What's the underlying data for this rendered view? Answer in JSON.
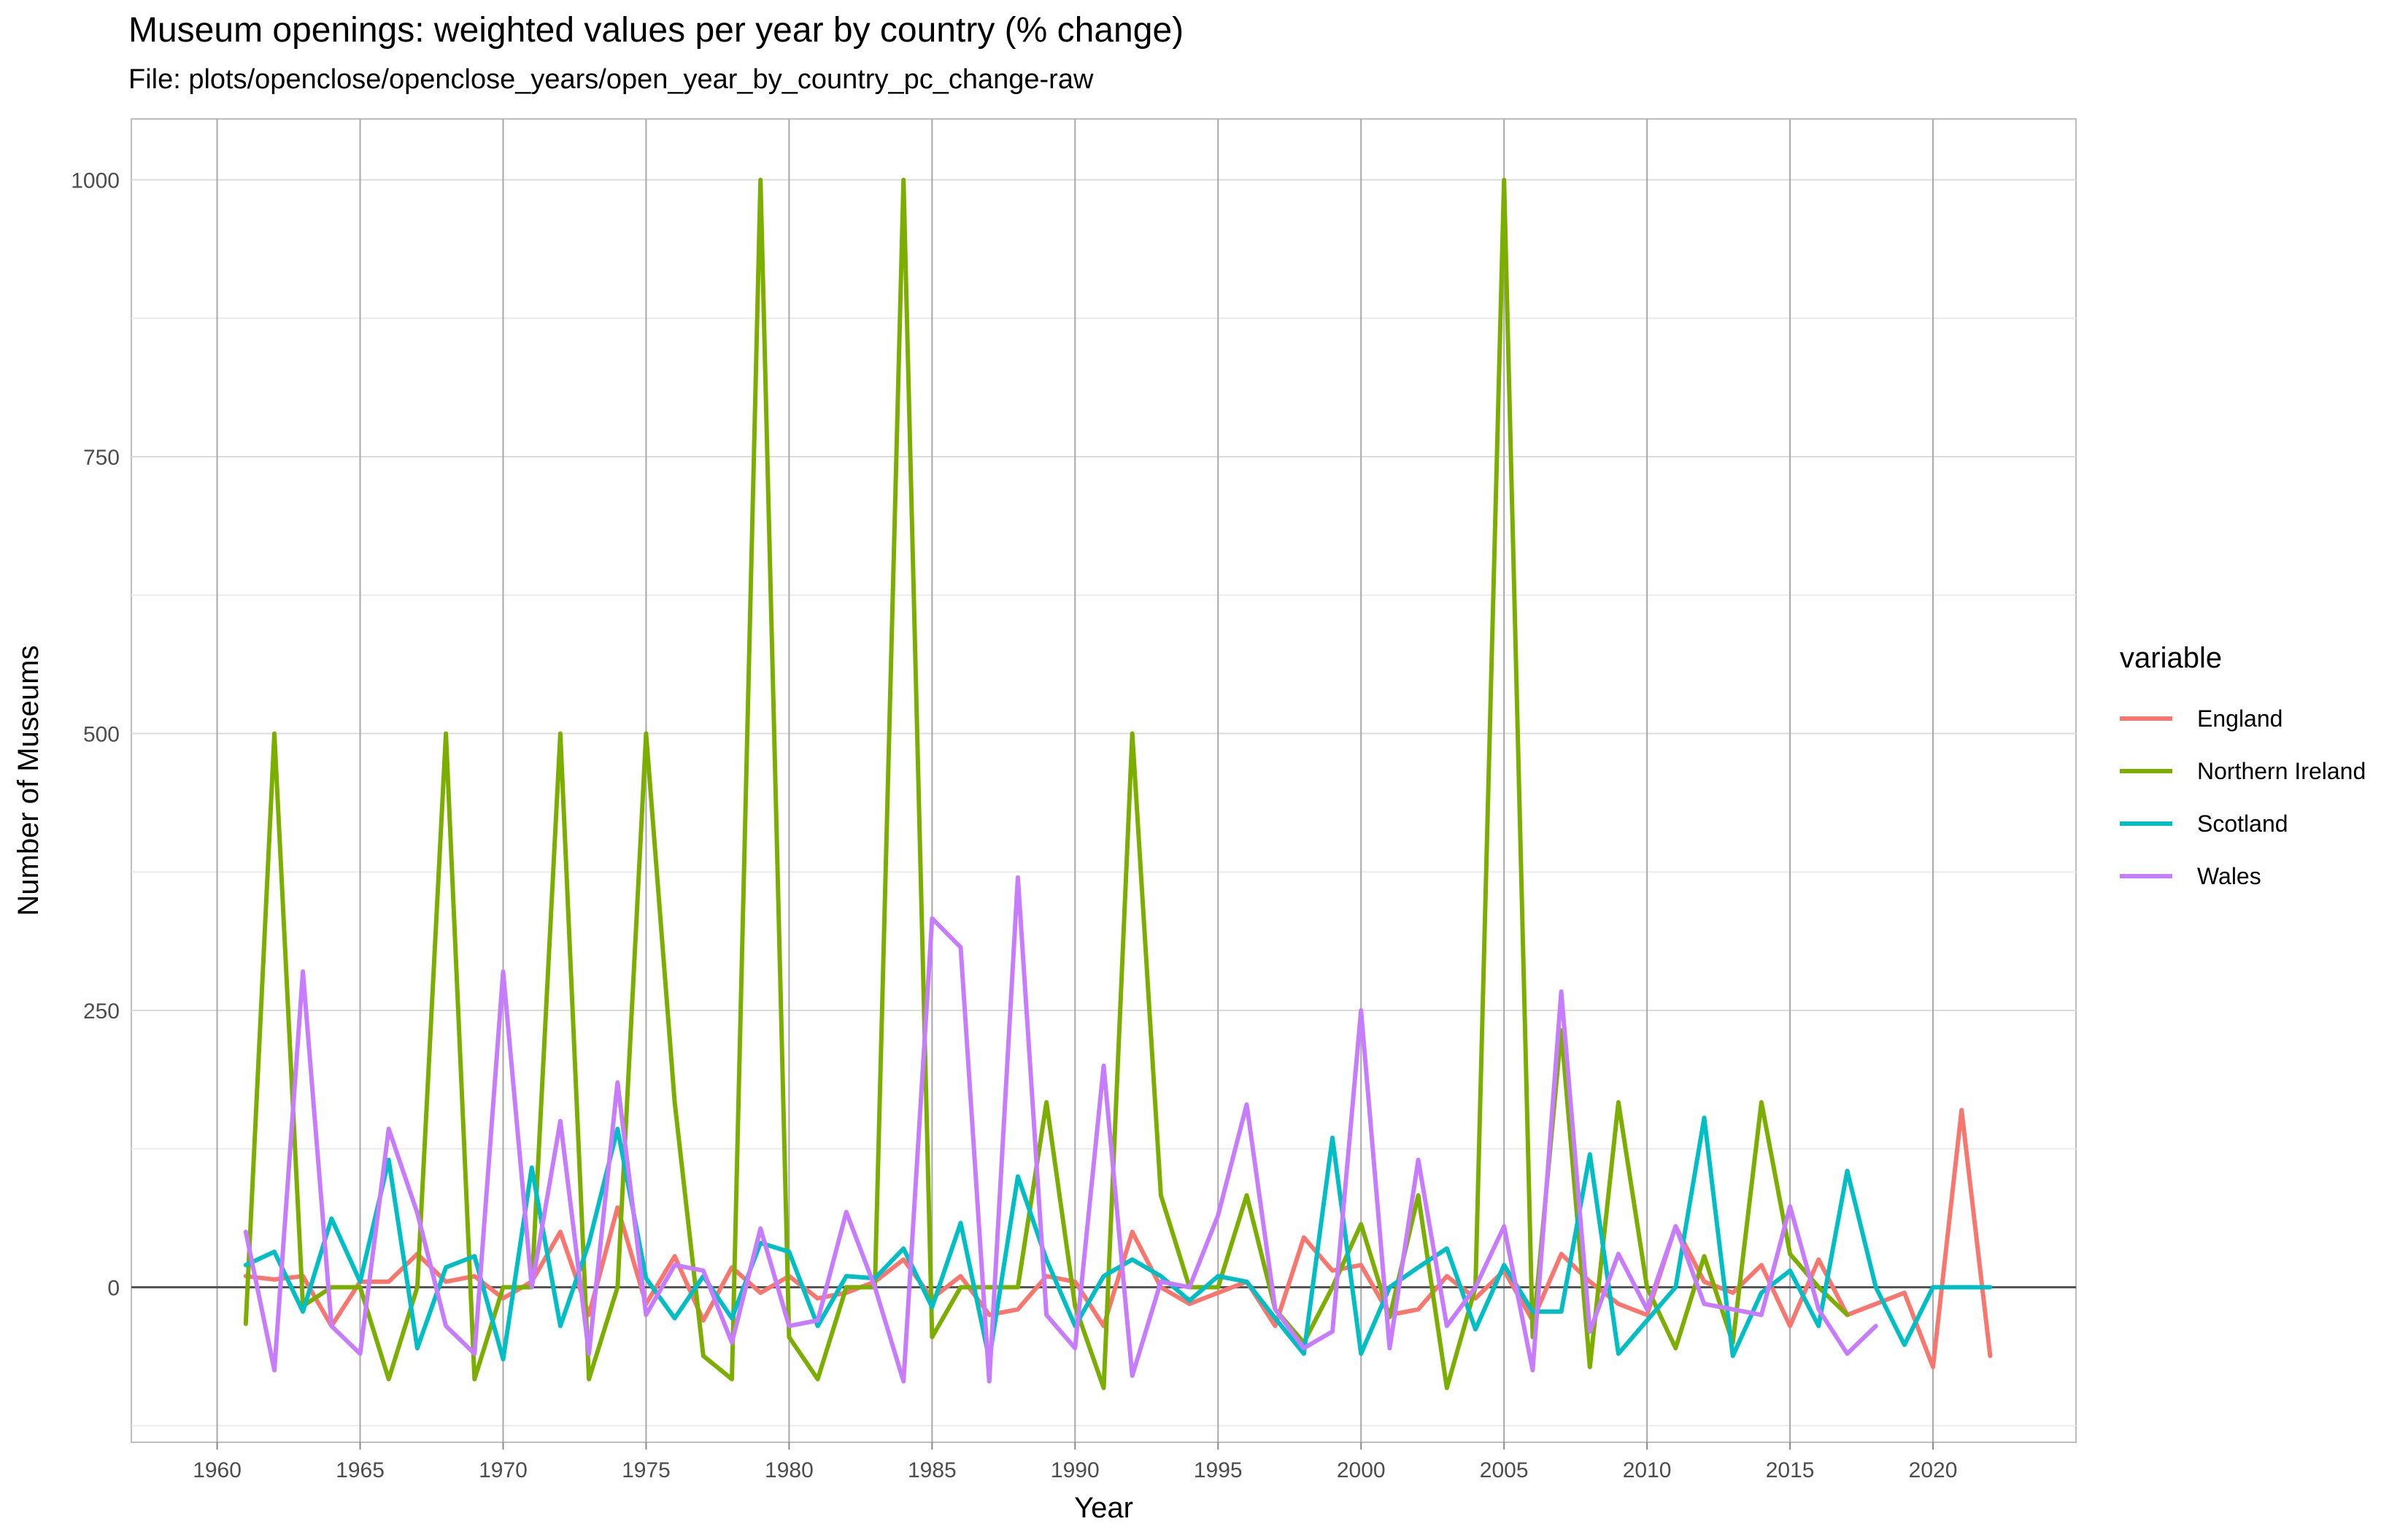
{
  "title": "Museum openings: weighted values per year by country (% change)",
  "subtitle": "File: plots/openclose/openclose_years/open_year_by_country_pc_change-raw",
  "chart_data": {
    "type": "line",
    "xlabel": "Year",
    "ylabel": "Number of Museums",
    "xlim": [
      1957,
      2025
    ],
    "ylim": [
      -140,
      1055
    ],
    "x_ticks": [
      1960,
      1965,
      1970,
      1975,
      1980,
      1985,
      1990,
      1995,
      2000,
      2005,
      2010,
      2015,
      2020
    ],
    "y_ticks": [
      0,
      250,
      500,
      750,
      1000
    ],
    "legend_title": "variable",
    "legend_position": "right",
    "grid": true,
    "series": [
      {
        "name": "England",
        "color": "#F8766D",
        "points": [
          [
            1961,
            10
          ],
          [
            1962,
            7
          ],
          [
            1963,
            10
          ],
          [
            1964,
            -35
          ],
          [
            1965,
            5
          ],
          [
            1966,
            5
          ],
          [
            1967,
            30
          ],
          [
            1968,
            5
          ],
          [
            1969,
            10
          ],
          [
            1970,
            -10
          ],
          [
            1971,
            5
          ],
          [
            1972,
            50
          ],
          [
            1973,
            -25
          ],
          [
            1974,
            72
          ],
          [
            1975,
            -15
          ],
          [
            1976,
            28
          ],
          [
            1977,
            -30
          ],
          [
            1978,
            18
          ],
          [
            1979,
            -5
          ],
          [
            1980,
            10
          ],
          [
            1981,
            -10
          ],
          [
            1982,
            -5
          ],
          [
            1983,
            5
          ],
          [
            1984,
            25
          ],
          [
            1985,
            -10
          ],
          [
            1986,
            10
          ],
          [
            1987,
            -25
          ],
          [
            1988,
            -20
          ],
          [
            1989,
            10
          ],
          [
            1990,
            5
          ],
          [
            1991,
            -35
          ],
          [
            1992,
            50
          ],
          [
            1993,
            0
          ],
          [
            1994,
            -15
          ],
          [
            1995,
            -5
          ],
          [
            1996,
            5
          ],
          [
            1997,
            -35
          ],
          [
            1998,
            45
          ],
          [
            1999,
            15
          ],
          [
            2000,
            20
          ],
          [
            2001,
            -25
          ],
          [
            2002,
            -20
          ],
          [
            2003,
            10
          ],
          [
            2004,
            -10
          ],
          [
            2005,
            15
          ],
          [
            2006,
            -30
          ],
          [
            2007,
            30
          ],
          [
            2008,
            5
          ],
          [
            2009,
            -15
          ],
          [
            2010,
            -25
          ],
          [
            2011,
            55
          ],
          [
            2012,
            5
          ],
          [
            2013,
            -5
          ],
          [
            2014,
            20
          ],
          [
            2015,
            -35
          ],
          [
            2016,
            25
          ],
          [
            2017,
            -25
          ],
          [
            2018,
            -15
          ],
          [
            2019,
            -5
          ],
          [
            2020,
            -72
          ],
          [
            2021,
            160
          ],
          [
            2022,
            -62
          ]
        ]
      },
      {
        "name": "Northern Ireland",
        "color": "#7CAE00",
        "points": [
          [
            1961,
            -33
          ],
          [
            1962,
            500
          ],
          [
            1963,
            -17
          ],
          [
            1964,
            0
          ],
          [
            1965,
            0
          ],
          [
            1966,
            -83
          ],
          [
            1967,
            0
          ],
          [
            1968,
            500
          ],
          [
            1969,
            -83
          ],
          [
            1970,
            0
          ],
          [
            1971,
            0
          ],
          [
            1972,
            500
          ],
          [
            1973,
            -83
          ],
          [
            1974,
            0
          ],
          [
            1975,
            500
          ],
          [
            1976,
            167
          ],
          [
            1977,
            -62
          ],
          [
            1978,
            -83
          ],
          [
            1979,
            1000
          ],
          [
            1980,
            -45
          ],
          [
            1981,
            -83
          ],
          [
            1982,
            0
          ],
          [
            1983,
            0
          ],
          [
            1984,
            1000
          ],
          [
            1985,
            -45
          ],
          [
            1986,
            0
          ],
          [
            1987,
            0
          ],
          [
            1988,
            0
          ],
          [
            1989,
            167
          ],
          [
            1990,
            -17
          ],
          [
            1991,
            -91
          ],
          [
            1992,
            500
          ],
          [
            1993,
            83
          ],
          [
            1994,
            0
          ],
          [
            1995,
            0
          ],
          [
            1996,
            83
          ],
          [
            1997,
            -20
          ],
          [
            1998,
            -50
          ],
          [
            1999,
            0
          ],
          [
            2000,
            57
          ],
          [
            2001,
            -27
          ],
          [
            2002,
            83
          ],
          [
            2003,
            -91
          ],
          [
            2004,
            0
          ],
          [
            2005,
            1000
          ],
          [
            2006,
            -45
          ],
          [
            2007,
            232
          ],
          [
            2008,
            -72
          ],
          [
            2009,
            167
          ],
          [
            2010,
            0
          ],
          [
            2011,
            -55
          ],
          [
            2012,
            28
          ],
          [
            2013,
            -50
          ],
          [
            2014,
            167
          ],
          [
            2015,
            30
          ],
          [
            2016,
            0
          ],
          [
            2017,
            -25
          ]
        ]
      },
      {
        "name": "Scotland",
        "color": "#00BFC4",
        "points": [
          [
            1961,
            20
          ],
          [
            1962,
            32
          ],
          [
            1963,
            -22
          ],
          [
            1964,
            62
          ],
          [
            1965,
            5
          ],
          [
            1966,
            115
          ],
          [
            1967,
            -55
          ],
          [
            1968,
            18
          ],
          [
            1969,
            28
          ],
          [
            1970,
            -65
          ],
          [
            1971,
            108
          ],
          [
            1972,
            -35
          ],
          [
            1973,
            40
          ],
          [
            1974,
            143
          ],
          [
            1975,
            8
          ],
          [
            1976,
            -28
          ],
          [
            1977,
            10
          ],
          [
            1978,
            -28
          ],
          [
            1979,
            40
          ],
          [
            1980,
            32
          ],
          [
            1981,
            -35
          ],
          [
            1982,
            10
          ],
          [
            1983,
            8
          ],
          [
            1984,
            35
          ],
          [
            1985,
            -18
          ],
          [
            1986,
            58
          ],
          [
            1987,
            -65
          ],
          [
            1988,
            100
          ],
          [
            1989,
            25
          ],
          [
            1990,
            -35
          ],
          [
            1991,
            10
          ],
          [
            1992,
            25
          ],
          [
            1993,
            10
          ],
          [
            1994,
            -12
          ],
          [
            1995,
            10
          ],
          [
            1996,
            5
          ],
          [
            1997,
            -28
          ],
          [
            1998,
            -60
          ],
          [
            1999,
            135
          ],
          [
            2000,
            -60
          ],
          [
            2001,
            0
          ],
          [
            2002,
            18
          ],
          [
            2003,
            35
          ],
          [
            2004,
            -38
          ],
          [
            2005,
            20
          ],
          [
            2006,
            -22
          ],
          [
            2007,
            -22
          ],
          [
            2008,
            120
          ],
          [
            2009,
            -60
          ],
          [
            2010,
            -30
          ],
          [
            2011,
            0
          ],
          [
            2012,
            153
          ],
          [
            2013,
            -62
          ],
          [
            2014,
            -5
          ],
          [
            2015,
            15
          ],
          [
            2016,
            -35
          ],
          [
            2017,
            105
          ],
          [
            2018,
            0
          ],
          [
            2019,
            -52
          ],
          [
            2020,
            0
          ],
          [
            2021,
            0
          ],
          [
            2022,
            0
          ]
        ]
      },
      {
        "name": "Wales",
        "color": "#C77CFF",
        "points": [
          [
            1961,
            50
          ],
          [
            1962,
            -75
          ],
          [
            1963,
            285
          ],
          [
            1964,
            -35
          ],
          [
            1965,
            -60
          ],
          [
            1966,
            143
          ],
          [
            1967,
            67
          ],
          [
            1968,
            -35
          ],
          [
            1969,
            -60
          ],
          [
            1970,
            285
          ],
          [
            1971,
            0
          ],
          [
            1972,
            150
          ],
          [
            1973,
            -60
          ],
          [
            1974,
            185
          ],
          [
            1975,
            -25
          ],
          [
            1976,
            20
          ],
          [
            1977,
            15
          ],
          [
            1978,
            -50
          ],
          [
            1979,
            53
          ],
          [
            1980,
            -35
          ],
          [
            1981,
            -30
          ],
          [
            1982,
            68
          ],
          [
            1983,
            0
          ],
          [
            1984,
            -85
          ],
          [
            1985,
            333
          ],
          [
            1986,
            307
          ],
          [
            1987,
            -85
          ],
          [
            1988,
            370
          ],
          [
            1989,
            -25
          ],
          [
            1990,
            -55
          ],
          [
            1991,
            200
          ],
          [
            1992,
            -80
          ],
          [
            1993,
            5
          ],
          [
            1994,
            0
          ],
          [
            1995,
            65
          ],
          [
            1996,
            165
          ],
          [
            1997,
            -20
          ],
          [
            1998,
            -55
          ],
          [
            1999,
            -40
          ],
          [
            2000,
            250
          ],
          [
            2001,
            -55
          ],
          [
            2002,
            115
          ],
          [
            2003,
            -35
          ],
          [
            2004,
            0
          ],
          [
            2005,
            55
          ],
          [
            2006,
            -75
          ],
          [
            2007,
            267
          ],
          [
            2008,
            -40
          ],
          [
            2009,
            30
          ],
          [
            2010,
            -20
          ],
          [
            2011,
            55
          ],
          [
            2012,
            -15
          ],
          [
            2013,
            -20
          ],
          [
            2014,
            -25
          ],
          [
            2015,
            73
          ],
          [
            2016,
            -20
          ],
          [
            2017,
            -60
          ],
          [
            2018,
            -35
          ]
        ]
      }
    ]
  }
}
